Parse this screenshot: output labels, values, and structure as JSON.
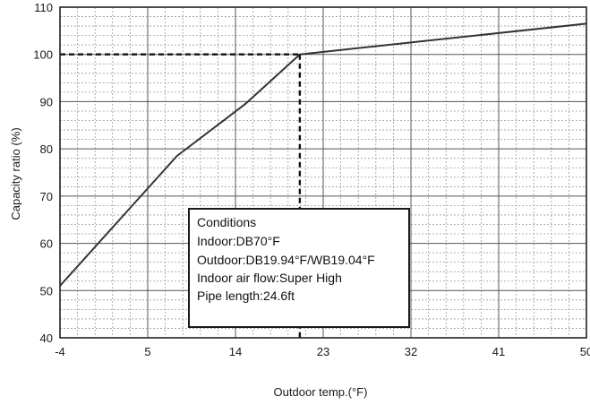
{
  "chart_data": {
    "type": "line",
    "xlabel": "Outdoor temp.(°F)",
    "ylabel": "Capacity ratio (%)",
    "xlim": [
      -4,
      50
    ],
    "ylim": [
      40,
      110
    ],
    "x_ticks": [
      "-4",
      "5",
      "14",
      "23",
      "32",
      "41",
      "50"
    ],
    "y_ticks": [
      "40",
      "50",
      "60",
      "70",
      "80",
      "90",
      "100",
      "110"
    ],
    "grid": true,
    "series": [
      {
        "x": [
          -4,
          8,
          15,
          20.6,
          50
        ],
        "y": [
          51,
          78.5,
          89.5,
          100,
          106.5
        ]
      }
    ],
    "reference": {
      "x": 20.6,
      "y": 100,
      "style": "dashed"
    },
    "annotation": {
      "lines": [
        "Conditions",
        "Indoor:DB70°F",
        "Outdoor:DB19.94°F/WB19.04°F",
        "Indoor air flow:Super High",
        "Pipe length:24.6ft"
      ]
    }
  }
}
